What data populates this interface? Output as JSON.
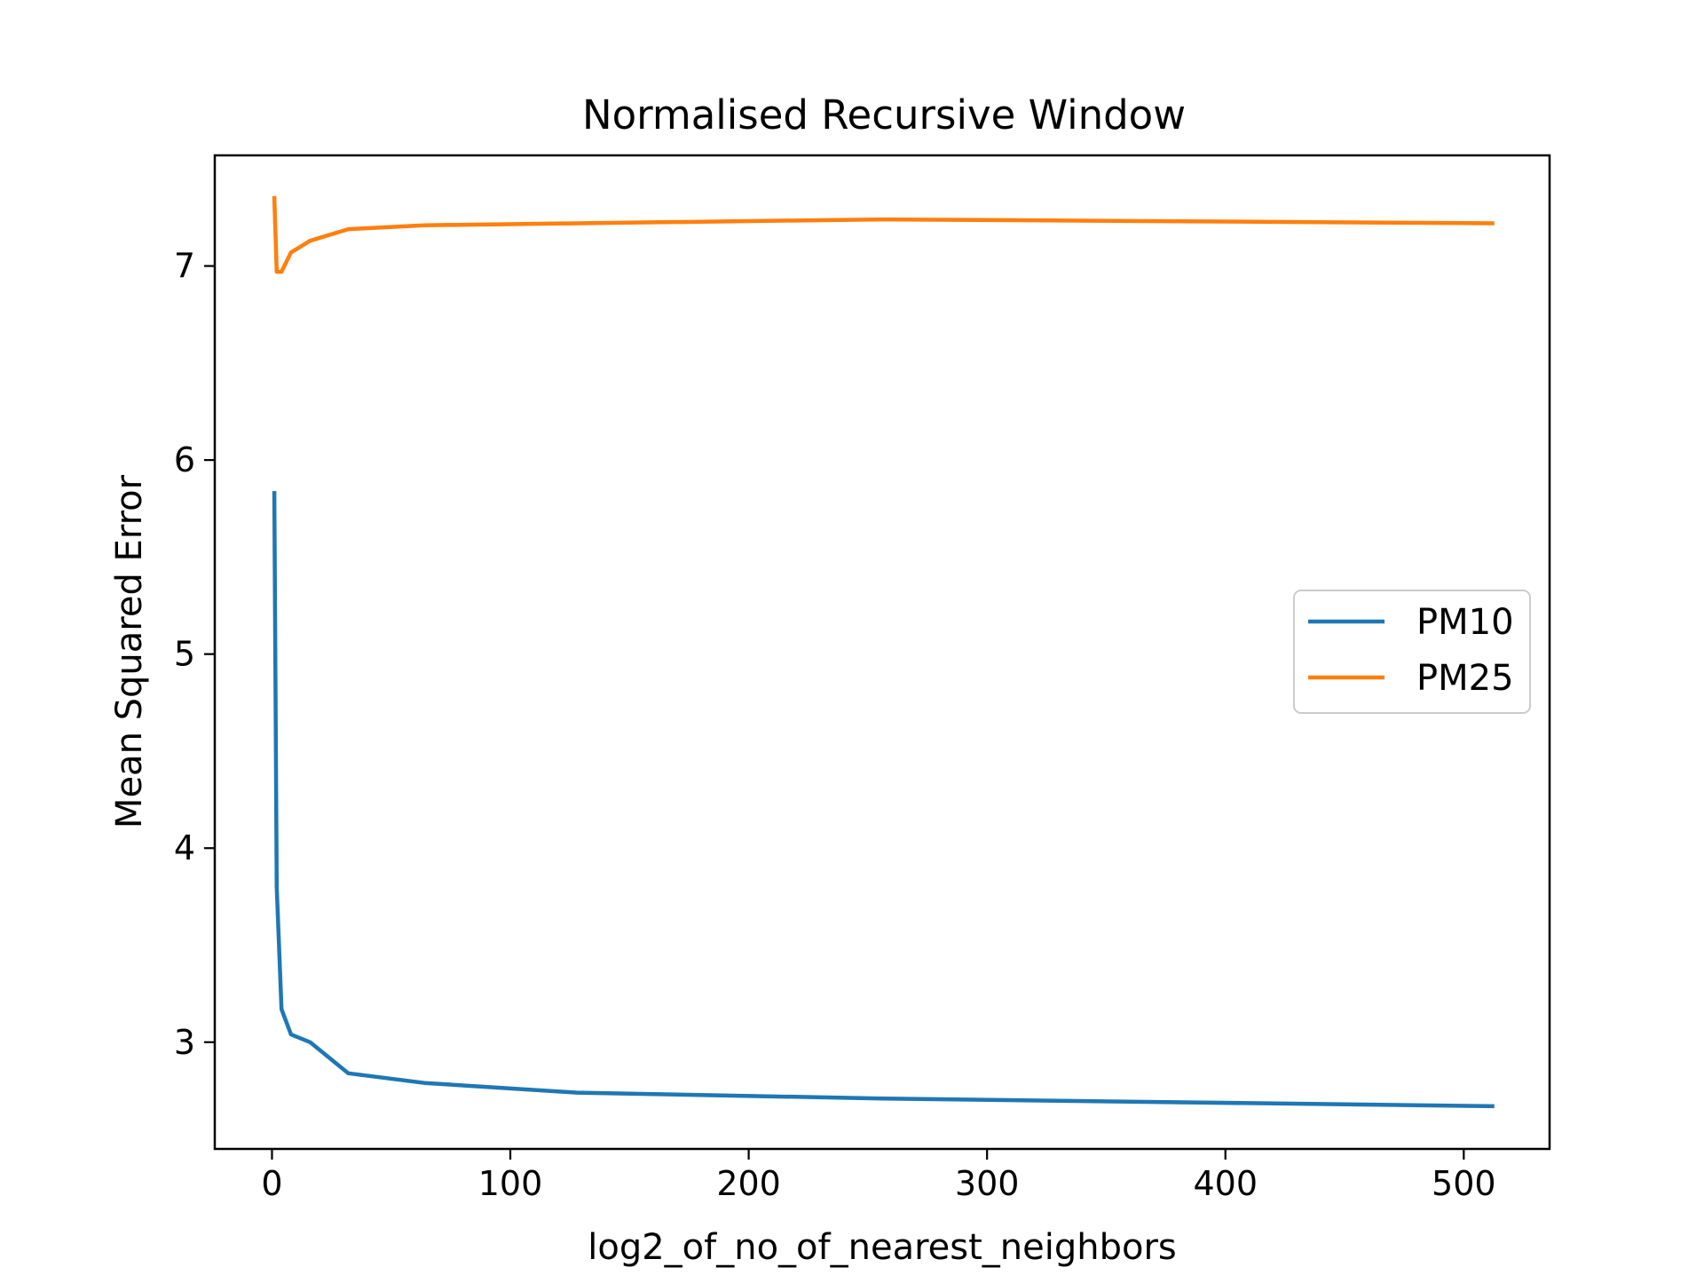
{
  "chart_data": {
    "type": "line",
    "title": "Normalised Recursive Window",
    "xlabel": "log2_of_no_of_nearest_neighbors",
    "ylabel": "Mean Squared Error",
    "xlim": [
      -24,
      536
    ],
    "ylim": [
      2.45,
      7.57
    ],
    "xticks": [
      0,
      100,
      200,
      300,
      400,
      500
    ],
    "xtick_labels": [
      "0",
      "100",
      "200",
      "300",
      "400",
      "500"
    ],
    "yticks": [
      3,
      4,
      5,
      6,
      7
    ],
    "ytick_labels": [
      "3",
      "4",
      "5",
      "6",
      "7"
    ],
    "grid": false,
    "legend_position": "center-right",
    "x": [
      1,
      2,
      4,
      8,
      16,
      32,
      64,
      128,
      256,
      512
    ],
    "series": [
      {
        "name": "PM10",
        "color": "#1f77b4",
        "values": [
          5.83,
          3.8,
          3.17,
          3.04,
          3.0,
          2.84,
          2.79,
          2.74,
          2.71,
          2.67
        ]
      },
      {
        "name": "PM25",
        "color": "#ff7f0e",
        "values": [
          7.35,
          6.97,
          6.97,
          7.07,
          7.13,
          7.19,
          7.21,
          7.22,
          7.24,
          7.22
        ]
      }
    ]
  }
}
